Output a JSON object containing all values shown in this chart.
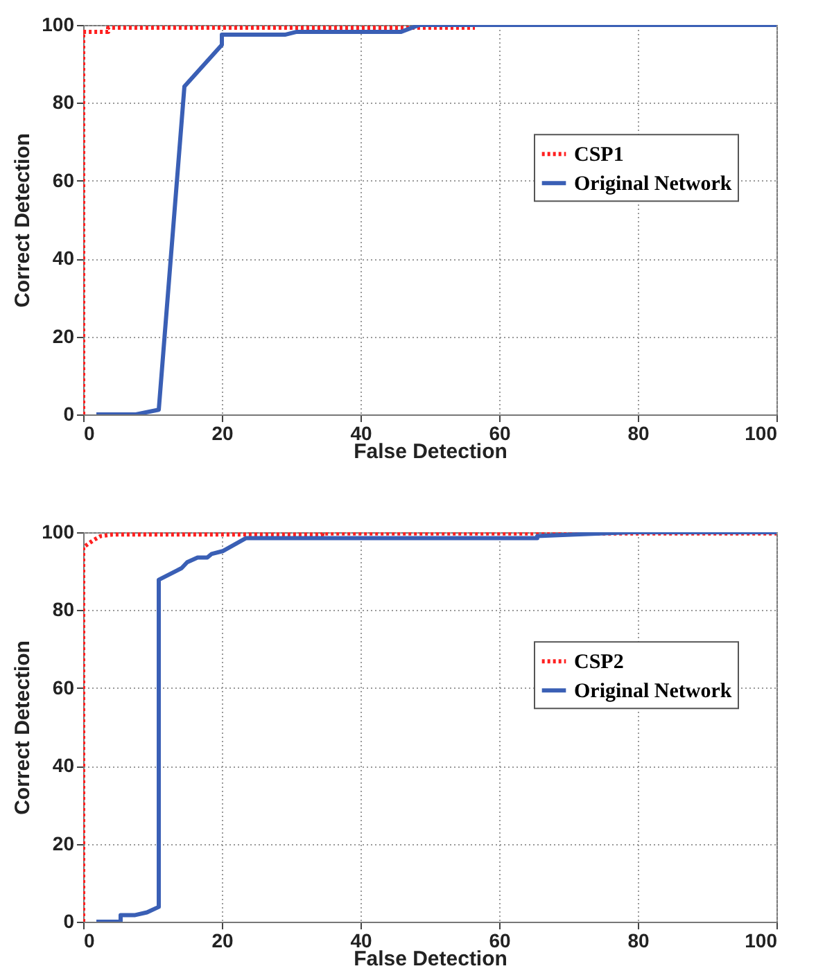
{
  "chart_data": [
    {
      "type": "line",
      "xlabel": "False Detection",
      "ylabel": "Correct Detection",
      "xlim": [
        0,
        100
      ],
      "ylim": [
        0,
        100
      ],
      "xticks": [
        0,
        20,
        40,
        60,
        80,
        100
      ],
      "yticks": [
        0,
        20,
        40,
        60,
        80,
        100
      ],
      "grid": true,
      "legend": "right",
      "series": [
        {
          "name": "CSP1",
          "color": "#ff2020",
          "line_style": "dotted",
          "x": [
            0,
            0,
            3.6,
            3.6,
            56.5
          ],
          "values": [
            0,
            98.2,
            98.2,
            99.3,
            99.3
          ]
        },
        {
          "name": "Original Network",
          "color": "#3a5fb5",
          "line_style": "solid",
          "x": [
            1.9,
            7.6,
            10.9,
            14.6,
            20,
            20,
            29.1,
            30.7,
            45.8,
            48.5,
            100
          ],
          "values": [
            0,
            0,
            1.2,
            84.2,
            94.9,
            97.5,
            97.5,
            98.2,
            98.2,
            100,
            100
          ]
        }
      ]
    },
    {
      "type": "line",
      "xlabel": "False Detection",
      "ylabel": "Correct Detection",
      "xlim": [
        0,
        100
      ],
      "ylim": [
        0,
        100
      ],
      "xticks": [
        0,
        20,
        40,
        60,
        80,
        100
      ],
      "yticks": [
        0,
        20,
        40,
        60,
        80,
        100
      ],
      "grid": true,
      "legend": "right",
      "series": [
        {
          "name": "CSP2",
          "color": "#ff2020",
          "line_style": "dotted",
          "x": [
            0,
            0,
            1.5,
            2.5,
            4.2,
            34.5,
            34.5,
            100
          ],
          "values": [
            0,
            96.1,
            98,
            99,
            99.4,
            99.4,
            99.7,
            99.7
          ]
        },
        {
          "name": "Original Network",
          "color": "#3a5fb5",
          "line_style": "solid",
          "x": [
            1.9,
            5.4,
            5.4,
            7.5,
            9.2,
            10.9,
            10.9,
            14.2,
            15,
            16.5,
            17.9,
            18.5,
            20.2,
            23.5,
            65.5,
            65.5,
            78.9,
            100
          ],
          "values": [
            0,
            0,
            1.7,
            1.7,
            2.4,
            3.8,
            87.8,
            90.8,
            92.3,
            93.5,
            93.5,
            94.4,
            95.2,
            98.5,
            98.5,
            99,
            100,
            100
          ]
        }
      ]
    }
  ]
}
